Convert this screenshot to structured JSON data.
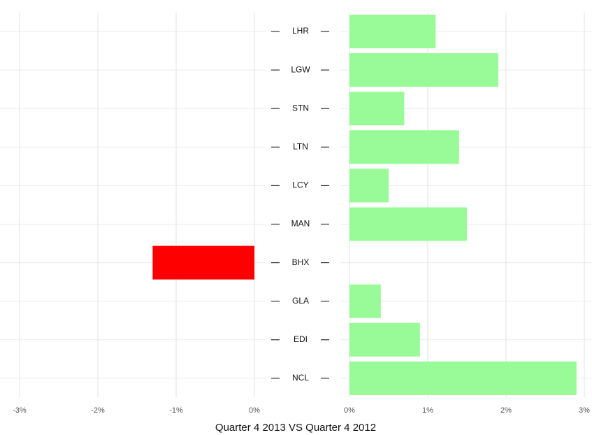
{
  "chart_data": {
    "type": "diverging_bar",
    "categories": [
      "LHR",
      "LGW",
      "STN",
      "LTN",
      "LCY",
      "MAN",
      "BHX",
      "GLA",
      "EDI",
      "NCL"
    ],
    "values": [
      1.1,
      1.9,
      0.7,
      1.4,
      0.5,
      1.5,
      -1.3,
      0.4,
      0.9,
      2.9
    ],
    "positive_color": "#98fb98",
    "negative_color": "#ff0000",
    "x_label": "Quarter 4 2013 VS Quarter 4 2012",
    "grid": true,
    "panels": [
      {
        "xlim": [
          -3,
          0
        ],
        "xticks": [
          {
            "value": -3,
            "label": "-3%"
          },
          {
            "value": -2,
            "label": "-2%"
          },
          {
            "value": -1,
            "label": "-1%"
          },
          {
            "value": 0,
            "label": "0%"
          }
        ]
      },
      {
        "xlim": [
          0,
          3
        ],
        "xticks": [
          {
            "value": 0,
            "label": "0%"
          },
          {
            "value": 1,
            "label": "1%"
          },
          {
            "value": 2,
            "label": "2%"
          },
          {
            "value": 3,
            "label": "3%"
          }
        ]
      }
    ]
  }
}
